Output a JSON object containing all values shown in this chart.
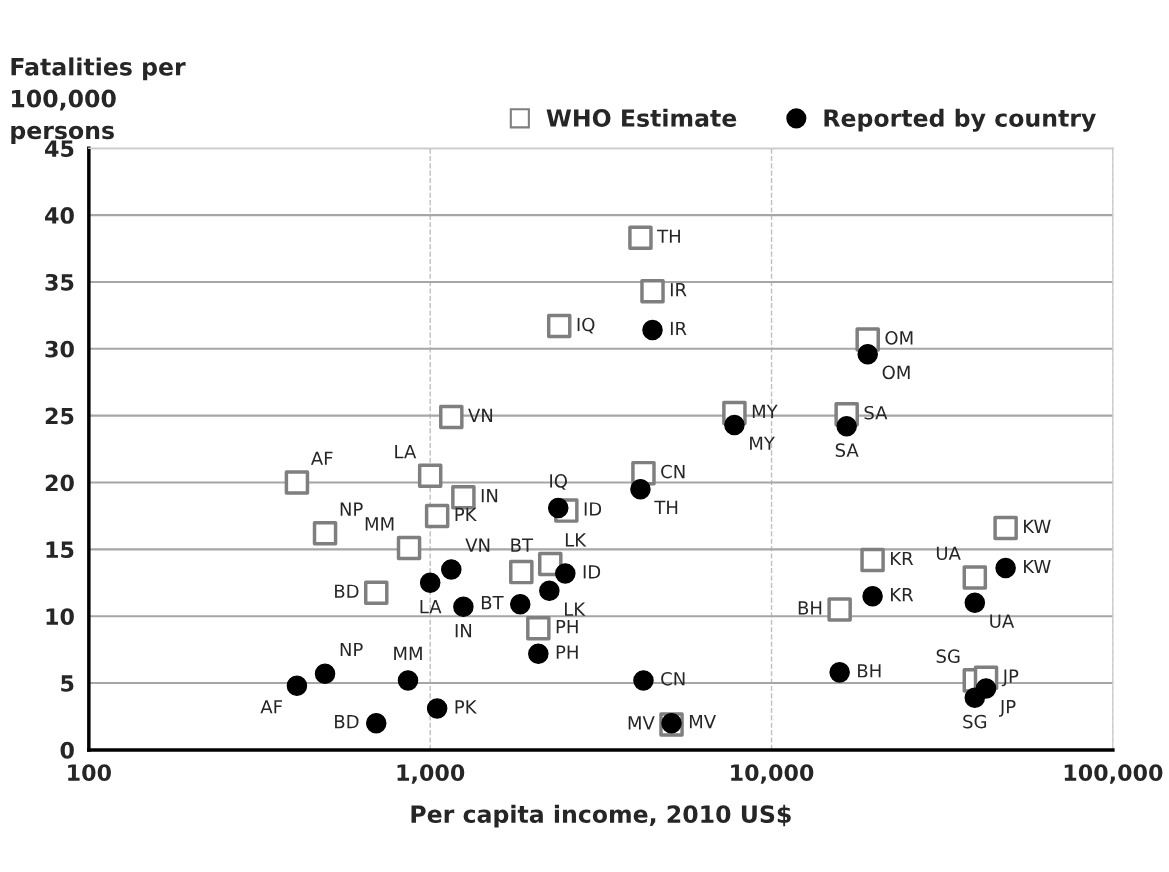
{
  "chart_data": {
    "type": "scatter",
    "xlabel": "Per capita income, 2010 US$",
    "ylabel": "Fatalities per\n100,000\npersons",
    "log": "x",
    "xlim": [
      100,
      100000
    ],
    "xticks": [
      {
        "value": 100,
        "label": "100"
      },
      {
        "value": 1000,
        "label": "1,000"
      },
      {
        "value": 10000,
        "label": "10,000"
      },
      {
        "value": 100000,
        "label": "100,000"
      }
    ],
    "ylim": [
      0,
      45
    ],
    "yticks": [
      0,
      5,
      10,
      15,
      20,
      25,
      30,
      35,
      40,
      45
    ],
    "grid": true,
    "legend": "top right",
    "series": [
      {
        "name": "WHO Estimate",
        "color": "#7f7f7f",
        "marker": "square",
        "x": [
          407,
          492,
          867,
          695,
          1000,
          1153,
          1251,
          1048,
          1849,
          2074,
          2388,
          2248,
          2505,
          4130,
          4480,
          4215,
          5093,
          7785,
          19130,
          16600,
          15830,
          19770,
          39400,
          48500,
          39400,
          42500
        ],
        "values": [
          20.0,
          16.2,
          15.1,
          11.75,
          20.5,
          24.9,
          18.9,
          17.5,
          13.3,
          9.1,
          31.7,
          13.9,
          17.9,
          38.3,
          34.3,
          20.7,
          1.9,
          25.2,
          30.7,
          25.1,
          10.5,
          14.2,
          12.9,
          16.6,
          5.2,
          5.4
        ],
        "value_labels": [
          "AF",
          "NP",
          "MM",
          "BD",
          "LA",
          "VN",
          "IN",
          "PK",
          "BT",
          "PH",
          "IQ",
          "LK",
          "ID",
          "TH",
          "IR",
          "CN",
          "MV",
          "MY",
          "OM",
          "SA",
          "BH",
          "KR",
          "UA",
          "KW",
          "SG",
          "JP"
        ]
      },
      {
        "name": "Reported by country",
        "color": "#000000",
        "marker": "circle",
        "x": [
          407,
          492,
          861,
          695,
          1000,
          1153,
          1251,
          1048,
          1836,
          2074,
          2372,
          2234,
          2488,
          4130,
          4480,
          4215,
          5093,
          7785,
          19130,
          16600,
          15830,
          19770,
          39400,
          48500,
          39400,
          42500
        ],
        "values": [
          4.8,
          5.7,
          5.2,
          2.0,
          12.5,
          13.5,
          10.7,
          3.1,
          10.9,
          7.2,
          18.1,
          11.9,
          13.2,
          19.5,
          31.4,
          5.2,
          2.0,
          24.3,
          29.6,
          24.2,
          5.8,
          11.5,
          11.0,
          13.6,
          3.9,
          4.6
        ],
        "value_labels": [
          "AF",
          "NP",
          "MM",
          "BD",
          "LA",
          "VN",
          "IN",
          "PK",
          "BT",
          "PH",
          "IQ",
          "LK",
          "ID",
          "TH",
          "IR",
          "CN",
          "MV",
          "MY",
          "OM",
          "SA",
          "BH",
          "KR",
          "UA",
          "KW",
          "SG",
          "JP"
        ]
      }
    ]
  }
}
